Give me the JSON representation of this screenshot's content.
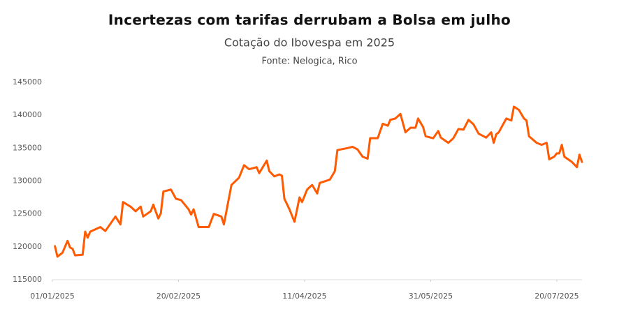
{
  "chart_data": {
    "type": "line",
    "title": "Incertezas com tarifas derrubam a Bolsa em julho",
    "subtitle": "Cotação do Ibovespa em 2025",
    "source": "Fonte: Nelogica, Rico",
    "x": [
      "02/01/2025",
      "03/01/2025",
      "05/01/2025",
      "07/01/2025",
      "08/01/2025",
      "09/01/2025",
      "10/01/2025",
      "13/01/2025",
      "14/01/2025",
      "15/01/2025",
      "16/01/2025",
      "20/01/2025",
      "22/01/2025",
      "26/01/2025",
      "28/01/2025",
      "29/01/2025",
      "01/02/2025",
      "03/02/2025",
      "05/02/2025",
      "06/02/2025",
      "09/02/2025",
      "10/02/2025",
      "12/02/2025",
      "13/02/2025",
      "14/02/2025",
      "17/02/2025",
      "19/02/2025",
      "21/02/2025",
      "24/02/2025",
      "25/02/2025",
      "26/02/2025",
      "28/02/2025",
      "04/03/2025",
      "06/03/2025",
      "09/03/2025",
      "10/03/2025",
      "13/03/2025",
      "16/03/2025",
      "18/03/2025",
      "20/03/2025",
      "23/03/2025",
      "24/03/2025",
      "27/03/2025",
      "28/03/2025",
      "30/03/2025",
      "01/04/2025",
      "02/04/2025",
      "03/04/2025",
      "05/04/2025",
      "07/04/2025",
      "09/04/2025",
      "10/04/2025",
      "12/04/2025",
      "14/04/2025",
      "16/04/2025",
      "17/04/2025",
      "21/04/2025",
      "23/04/2025",
      "24/04/2025",
      "28/04/2025",
      "30/04/2025",
      "02/05/2025",
      "04/05/2025",
      "06/05/2025",
      "07/05/2025",
      "10/05/2025",
      "12/05/2025",
      "14/05/2025",
      "15/05/2025",
      "17/05/2025",
      "19/05/2025",
      "21/05/2025",
      "23/05/2025",
      "25/05/2025",
      "26/05/2025",
      "28/05/2025",
      "29/05/2025",
      "01/06/2025",
      "03/06/2025",
      "04/06/2025",
      "07/06/2025",
      "09/06/2025",
      "11/06/2025",
      "13/06/2025",
      "15/06/2025",
      "17/06/2025",
      "19/06/2025",
      "22/06/2025",
      "24/06/2025",
      "25/06/2025",
      "26/06/2025",
      "27/06/2025",
      "30/06/2025",
      "02/07/2025",
      "03/07/2025",
      "05/07/2025",
      "07/07/2025",
      "08/07/2025",
      "09/07/2025",
      "12/07/2025",
      "14/07/2025",
      "16/07/2025",
      "17/07/2025",
      "19/07/2025",
      "20/07/2025",
      "21/07/2025",
      "22/07/2025",
      "23/07/2025",
      "26/07/2025",
      "28/07/2025",
      "29/07/2025",
      "30/07/2025"
    ],
    "series": [
      {
        "name": "Ibovespa",
        "color": "#ff5a00",
        "values": [
          120100,
          118500,
          119100,
          120900,
          119900,
          119700,
          118700,
          118800,
          122300,
          121400,
          122300,
          123000,
          122400,
          124600,
          123400,
          126800,
          126100,
          125400,
          126100,
          124600,
          125400,
          126400,
          124300,
          125100,
          128400,
          128700,
          127300,
          127100,
          125700,
          124900,
          125700,
          123000,
          123000,
          125000,
          124600,
          123400,
          129400,
          130500,
          132400,
          131800,
          132100,
          131200,
          133100,
          131500,
          130700,
          131000,
          130800,
          127300,
          125700,
          123800,
          127500,
          126800,
          128700,
          129400,
          128100,
          129700,
          130200,
          131500,
          134700,
          135000,
          135200,
          134800,
          133700,
          133400,
          136500,
          136500,
          138700,
          138400,
          139300,
          139500,
          140200,
          137400,
          138100,
          138100,
          139500,
          138200,
          136800,
          136500,
          137600,
          136600,
          135800,
          136500,
          137900,
          137800,
          139300,
          138600,
          137200,
          136600,
          137400,
          135800,
          137100,
          137400,
          139500,
          139200,
          141300,
          140800,
          139500,
          139200,
          136800,
          135800,
          135500,
          135800,
          133300,
          133700,
          134200,
          134200,
          135500,
          133700,
          132900,
          132100,
          134000,
          132900
        ]
      }
    ],
    "xlim": [
      "01/01/2025",
      "30/07/2025"
    ],
    "xticks": [
      "01/01/2025",
      "20/02/2025",
      "11/04/2025",
      "31/05/2025",
      "20/07/2025"
    ],
    "ylim": [
      115000,
      145000
    ],
    "yticks": [
      115000,
      120000,
      125000,
      130000,
      135000,
      140000,
      145000
    ],
    "grid": false
  }
}
